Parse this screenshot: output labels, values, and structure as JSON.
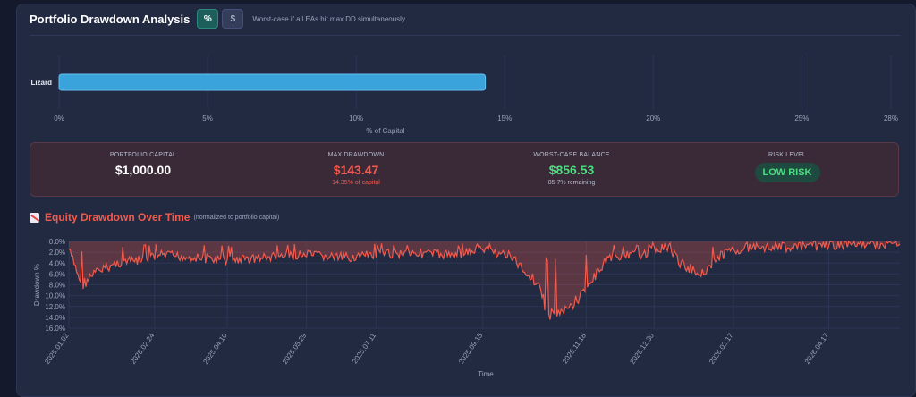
{
  "header": {
    "title": "Portfolio Drawdown Analysis",
    "toggle_percent": "%",
    "toggle_dollar": "$",
    "note": "Worst-case if all EAs hit max DD simultaneously"
  },
  "colors": {
    "bar": "#3aa3dc",
    "line": "#f25a4c",
    "positive": "#4ade80",
    "negative": "#f25a4c"
  },
  "chart_data": [
    {
      "type": "bar",
      "orientation": "horizontal",
      "categories": [
        "Lizard"
      ],
      "values": [
        14.35
      ],
      "xlabel": "% of Capital",
      "xlim": [
        0,
        28
      ],
      "x_ticks": [
        "0%",
        "5%",
        "10%",
        "15%",
        "20%",
        "25%",
        "28%"
      ],
      "grid": true
    },
    {
      "type": "area",
      "title": "Equity Drawdown Over Time",
      "subtitle": "(normalized to portfolio capital)",
      "xlabel": "Time",
      "ylabel": "Drawdown %",
      "ylim": [
        0,
        16
      ],
      "y_inverted": true,
      "y_ticks": [
        "0.0%",
        "2.0%",
        "4.0%",
        "6.0%",
        "8.0%",
        "10.0%",
        "12.0%",
        "14.0%",
        "16.0%"
      ],
      "x_ticks": [
        "2025.01.02",
        "2025.02.24",
        "2025.04.10",
        "2025.05.29",
        "2025.07.11",
        "2025.09.15",
        "2025.11.18",
        "2025.12.30",
        "2026.02.17",
        "2026.04.17"
      ],
      "x_range": [
        "2025-01-02",
        "2026-05-31"
      ],
      "x": [
        "2025-01-02",
        "2025-01-10",
        "2025-01-20",
        "2025-02-01",
        "2025-02-15",
        "2025-03-01",
        "2025-03-20",
        "2025-04-10",
        "2025-05-01",
        "2025-05-29",
        "2025-06-20",
        "2025-07-11",
        "2025-08-01",
        "2025-08-25",
        "2025-09-15",
        "2025-10-01",
        "2025-10-20",
        "2025-10-25",
        "2025-11-05",
        "2025-11-18",
        "2025-12-01",
        "2025-12-20",
        "2025-12-30",
        "2026-01-08",
        "2026-01-15",
        "2026-01-28",
        "2026-02-10",
        "2026-02-17",
        "2026-03-05",
        "2026-03-20",
        "2026-04-01",
        "2026-04-17",
        "2026-05-01",
        "2026-05-15",
        "2026-05-31"
      ],
      "values": [
        1.5,
        8.0,
        5.5,
        4.0,
        3.5,
        2.5,
        3.0,
        3.5,
        3.0,
        2.5,
        3.0,
        2.5,
        2.0,
        2.5,
        1.5,
        2.5,
        8.0,
        13.5,
        13.0,
        9.0,
        3.0,
        2.5,
        1.5,
        1.0,
        4.0,
        6.0,
        2.5,
        1.5,
        1.0,
        1.0,
        1.0,
        0.7,
        0.5,
        0.6,
        0.5
      ]
    }
  ],
  "stats": {
    "capital_label": "PORTFOLIO CAPITAL",
    "capital_value": "$1,000.00",
    "maxdd_label": "MAX DRAWDOWN",
    "maxdd_value": "$143.47",
    "maxdd_sub": "14.35% of capital",
    "worst_label": "WORST-CASE BALANCE",
    "worst_value": "$856.53",
    "worst_sub": "85.7% remaining",
    "risk_label": "RISK LEVEL",
    "risk_value": "LOW RISK"
  },
  "equity": {
    "title": "Equity Drawdown Over Time",
    "subtitle": "(normalized to portfolio capital)",
    "icon": "chart-down-icon"
  }
}
